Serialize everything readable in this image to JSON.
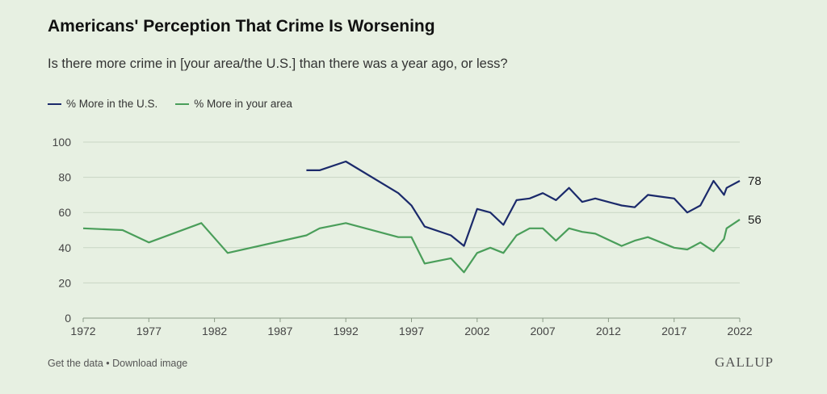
{
  "colors": {
    "us": "#1b2a6b",
    "area": "#4a9e5a",
    "grid": "#c9d6c4",
    "background": "#e7f0e2"
  },
  "footer": {
    "get_data": "Get the data",
    "separator": " • ",
    "download": "Download image"
  },
  "brand": "GALLUP",
  "chart_data": {
    "type": "line",
    "title": "Americans' Perception That Crime Is Worsening",
    "subtitle": "Is there more crime in [your area/the U.S.] than there was a year ago, or less?",
    "legend_position": "top-left",
    "grid": true,
    "xlim": [
      1972,
      2022
    ],
    "ylim": [
      0,
      100
    ],
    "x_ticks": [
      1972,
      1977,
      1982,
      1987,
      1992,
      1997,
      2002,
      2007,
      2012,
      2017,
      2022
    ],
    "y_ticks": [
      0,
      20,
      40,
      60,
      80,
      100
    ],
    "series": [
      {
        "name": "% More in the U.S.",
        "end_label": "78",
        "points": [
          [
            1989,
            84
          ],
          [
            1990,
            84
          ],
          [
            1992,
            89
          ],
          [
            1996,
            71
          ],
          [
            1997,
            64
          ],
          [
            1998,
            52
          ],
          [
            2000,
            47
          ],
          [
            2001,
            41
          ],
          [
            2002,
            62
          ],
          [
            2003,
            60
          ],
          [
            2004,
            53
          ],
          [
            2005,
            67
          ],
          [
            2006,
            68
          ],
          [
            2007,
            71
          ],
          [
            2008,
            67
          ],
          [
            2009,
            74
          ],
          [
            2010,
            66
          ],
          [
            2011,
            68
          ],
          [
            2013,
            64
          ],
          [
            2014,
            63
          ],
          [
            2015,
            70
          ],
          [
            2016,
            69
          ],
          [
            2017,
            68
          ],
          [
            2018,
            60
          ],
          [
            2019,
            64
          ],
          [
            2020,
            78
          ],
          [
            2020.8,
            70
          ],
          [
            2021,
            74
          ],
          [
            2022,
            78
          ]
        ]
      },
      {
        "name": "% More in your area",
        "end_label": "56",
        "points": [
          [
            1972,
            51
          ],
          [
            1975,
            50
          ],
          [
            1977,
            43
          ],
          [
            1981,
            54
          ],
          [
            1983,
            37
          ],
          [
            1989,
            47
          ],
          [
            1990,
            51
          ],
          [
            1992,
            54
          ],
          [
            1996,
            46
          ],
          [
            1997,
            46
          ],
          [
            1998,
            31
          ],
          [
            2000,
            34
          ],
          [
            2001,
            26
          ],
          [
            2002,
            37
          ],
          [
            2003,
            40
          ],
          [
            2004,
            37
          ],
          [
            2005,
            47
          ],
          [
            2006,
            51
          ],
          [
            2007,
            51
          ],
          [
            2008,
            44
          ],
          [
            2009,
            51
          ],
          [
            2010,
            49
          ],
          [
            2011,
            48
          ],
          [
            2013,
            41
          ],
          [
            2014,
            44
          ],
          [
            2015,
            46
          ],
          [
            2017,
            40
          ],
          [
            2018,
            39
          ],
          [
            2019,
            43
          ],
          [
            2020,
            38
          ],
          [
            2020.8,
            45
          ],
          [
            2021,
            51
          ],
          [
            2022,
            56
          ]
        ]
      }
    ]
  }
}
